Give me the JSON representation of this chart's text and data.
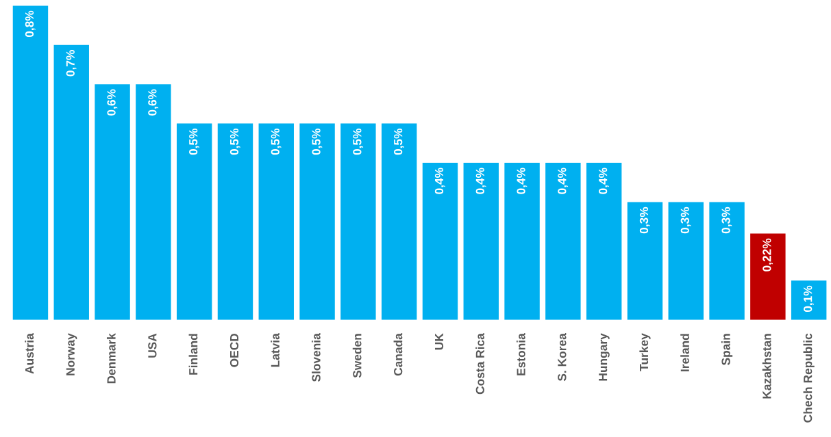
{
  "chart_data": {
    "type": "bar",
    "categories": [
      "Austria",
      "Norway",
      "Denmark",
      "USA",
      "Finland",
      "OECD",
      "Latvia",
      "Slovenia",
      "Sweden",
      "Canada",
      "UK",
      "Costa Rica",
      "Estonia",
      "S. Korea",
      "Hungary",
      "Turkey",
      "Ireland",
      "Spain",
      "Kazakhstan",
      "Chech Republic"
    ],
    "values": [
      0.8,
      0.7,
      0.6,
      0.6,
      0.5,
      0.5,
      0.5,
      0.5,
      0.5,
      0.5,
      0.4,
      0.4,
      0.4,
      0.4,
      0.4,
      0.3,
      0.3,
      0.3,
      0.22,
      0.1
    ],
    "colors": [
      "#00b0f0",
      "#00b0f0",
      "#00b0f0",
      "#00b0f0",
      "#00b0f0",
      "#00b0f0",
      "#00b0f0",
      "#00b0f0",
      "#00b0f0",
      "#00b0f0",
      "#00b0f0",
      "#00b0f0",
      "#00b0f0",
      "#00b0f0",
      "#00b0f0",
      "#00b0f0",
      "#00b0f0",
      "#00b0f0",
      "#c00000",
      "#00b0f0"
    ],
    "value_labels": [
      "0,8%",
      "0,7%",
      "0,6%",
      "0,6%",
      "0,5%",
      "0,5%",
      "0,5%",
      "0,5%",
      "0,5%",
      "0,5%",
      "0,4%",
      "0,4%",
      "0,4%",
      "0,4%",
      "0,4%",
      "0,3%",
      "0,3%",
      "0,3%",
      "0,22%",
      "0,1%"
    ],
    "grid": false,
    "legend": false
  }
}
